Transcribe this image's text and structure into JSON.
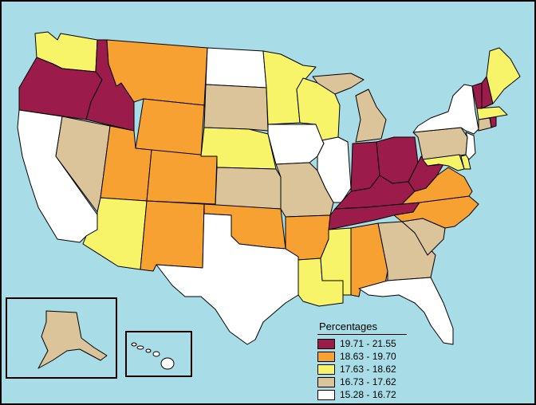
{
  "map": {
    "legend_title": "Percentages",
    "classes": [
      {
        "label": "19.71 - 21.55",
        "color": "#9b1b4a"
      },
      {
        "label": "18.63 - 19.70",
        "color": "#f7a132"
      },
      {
        "label": "17.63 - 18.62",
        "color": "#f8f46a"
      },
      {
        "label": "16.73 - 17.62",
        "color": "#dcc49a"
      },
      {
        "label": "15.28 - 16.72",
        "color": "#ffffff"
      }
    ],
    "ocean_color": "#a8dde8",
    "states": {
      "WA": 2,
      "OR": 0,
      "CA": 4,
      "ID": 0,
      "NV": 3,
      "MT": 1,
      "WY": 1,
      "UT": 1,
      "AZ": 2,
      "CO": 1,
      "NM": 1,
      "ND": 4,
      "SD": 3,
      "NE": 2,
      "KS": 3,
      "OK": 1,
      "TX": 4,
      "MN": 2,
      "IA": 4,
      "MO": 3,
      "AR": 1,
      "LA": 2,
      "WI": 2,
      "IL": 4,
      "MI": 3,
      "IN": 0,
      "OH": 0,
      "KY": 0,
      "TN": 0,
      "MS": 2,
      "AL": 1,
      "GA": 3,
      "FL": 4,
      "SC": 3,
      "NC": 1,
      "VA": 1,
      "WV": 0,
      "MD": 2,
      "DE": 2,
      "NJ": 4,
      "PA": 3,
      "NY": 4,
      "CT": 3,
      "RI": 0,
      "MA": 2,
      "VT": 0,
      "NH": 0,
      "ME": 2,
      "AK": 3,
      "HI": 4
    }
  }
}
